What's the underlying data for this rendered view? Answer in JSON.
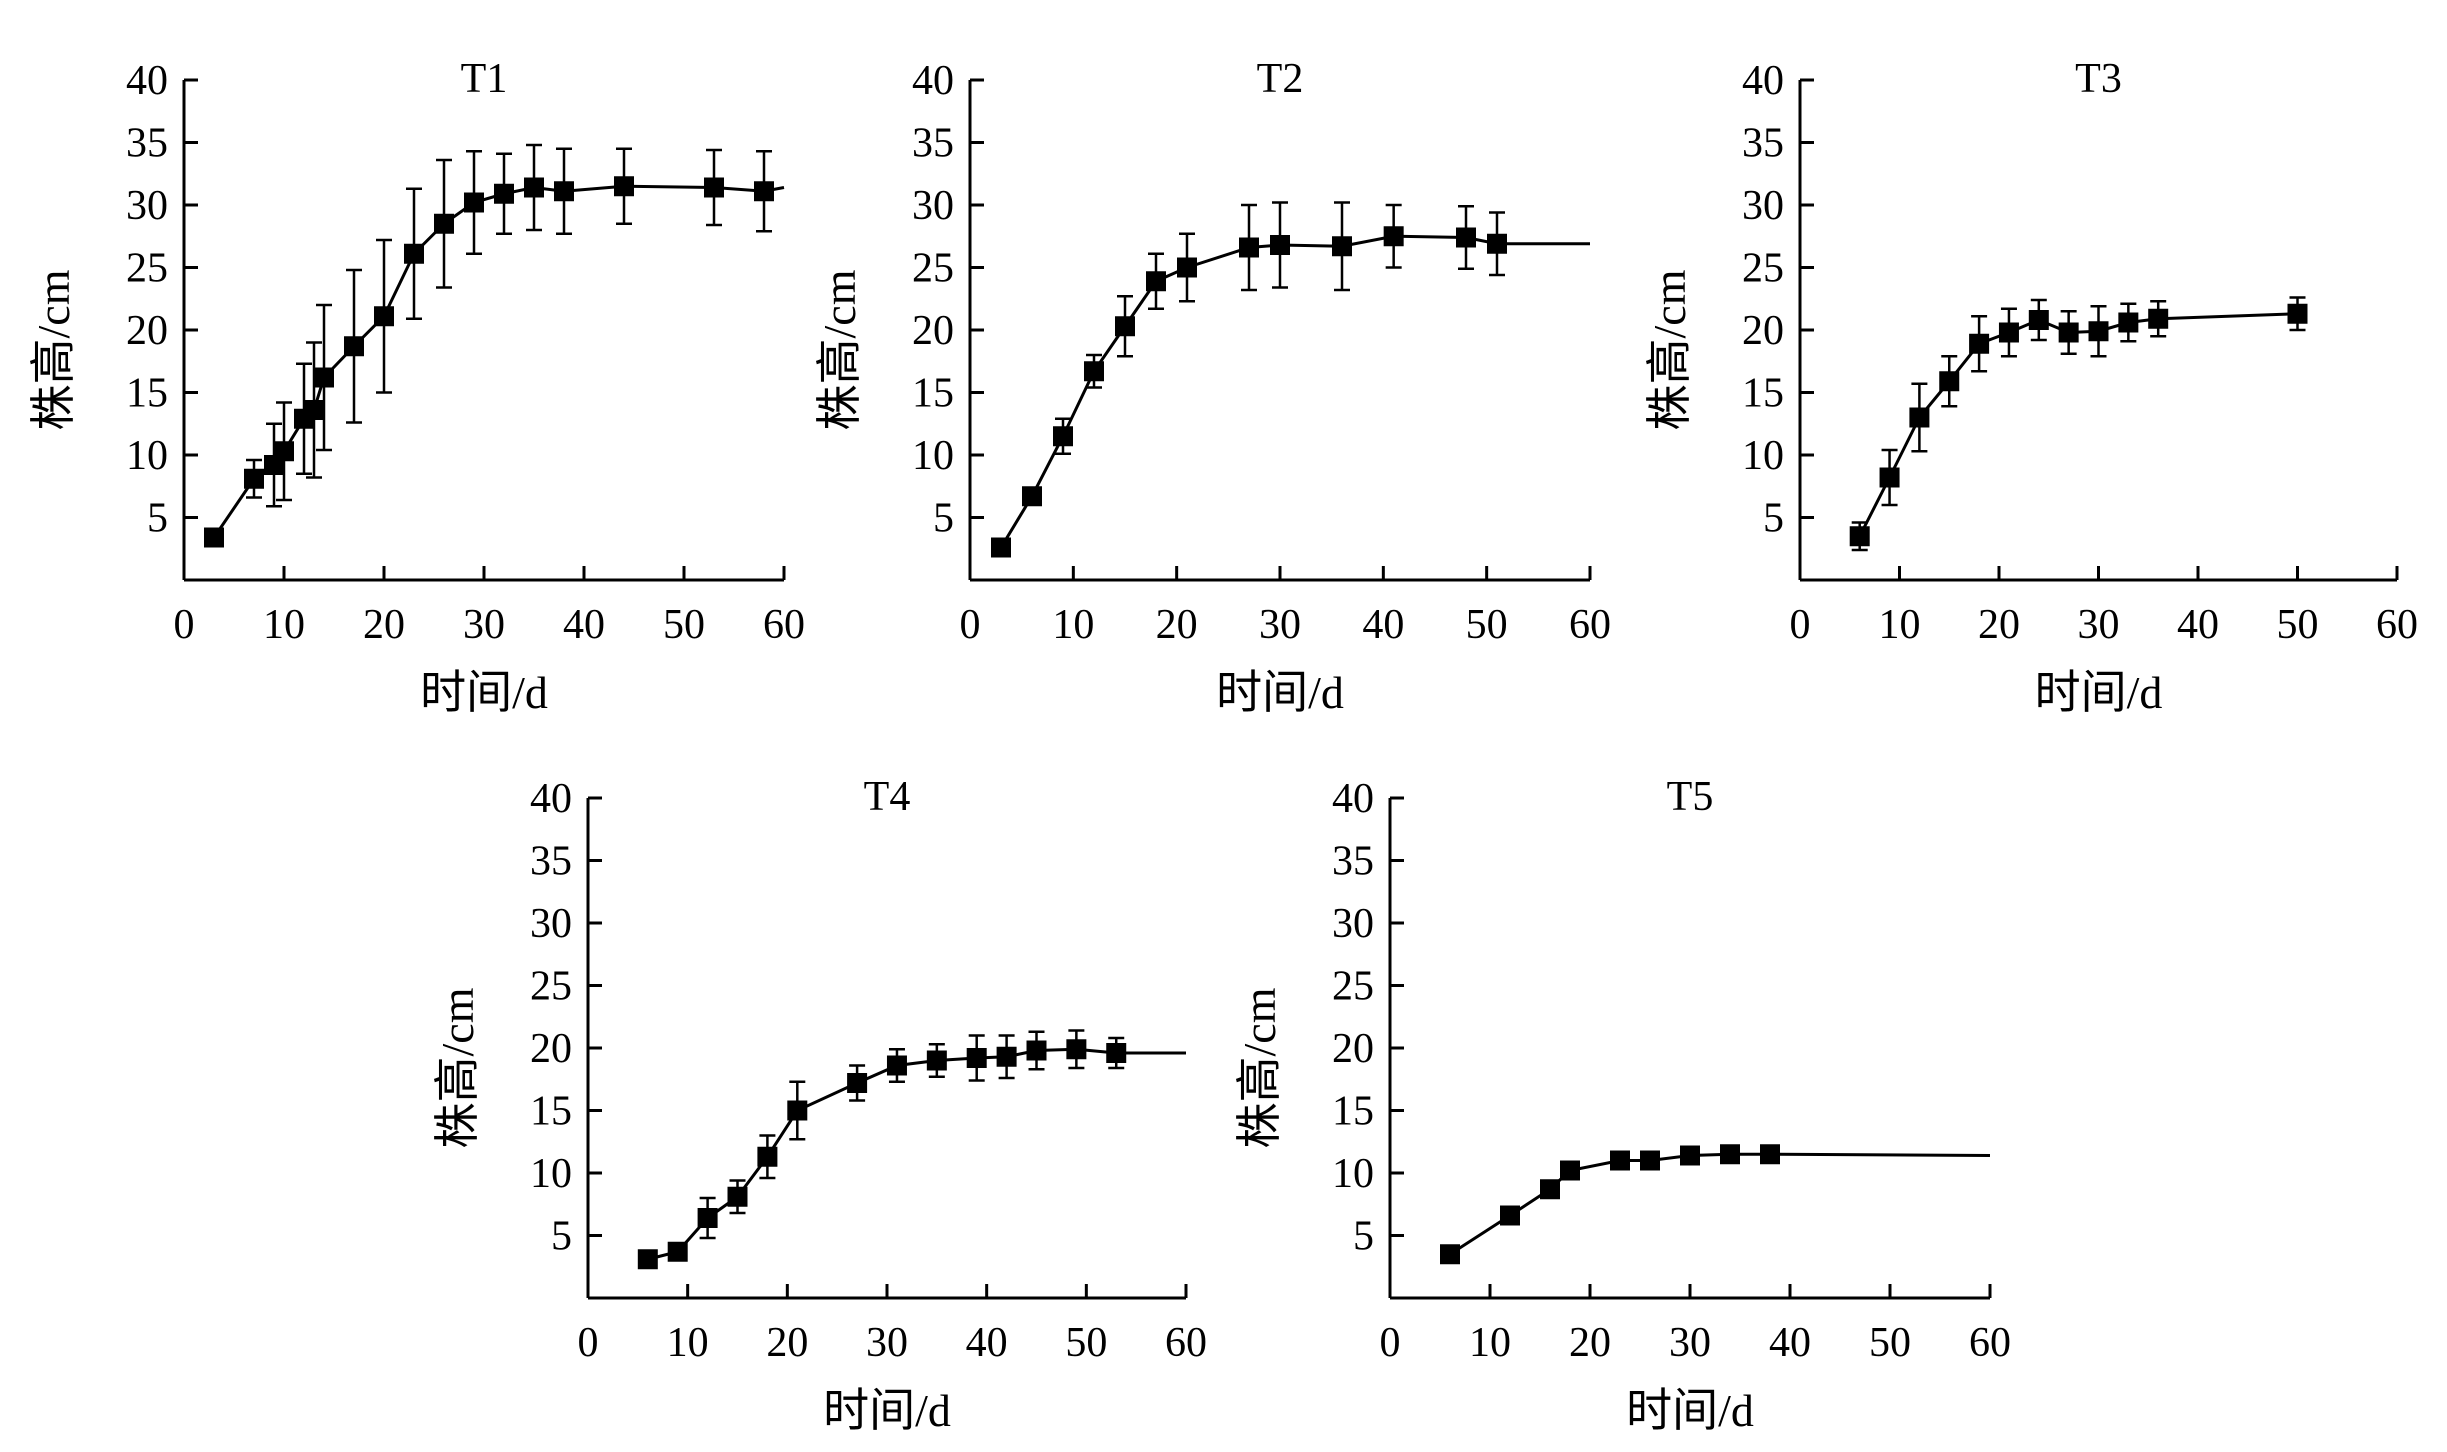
{
  "colors": {
    "line": "#000000",
    "marker": "#000000",
    "background": "#ffffff"
  },
  "chart_data": [
    {
      "type": "line",
      "title": "T1",
      "xlabel": "时间/d",
      "ylabel": "株高/cm",
      "xlim": [
        0,
        60
      ],
      "ylim": [
        0,
        40
      ],
      "xticks": [
        "0",
        "10",
        "20",
        "30",
        "40",
        "50",
        "60"
      ],
      "yticks": [
        "5",
        "10",
        "15",
        "20",
        "25",
        "30",
        "35",
        "40"
      ],
      "grid": false,
      "series": [
        {
          "x": [
            3,
            7,
            9,
            10,
            12,
            13,
            14,
            17,
            20,
            23,
            26,
            29,
            32,
            35,
            38,
            44,
            53,
            58
          ],
          "y": [
            3.4,
            8.1,
            9.2,
            10.3,
            12.9,
            13.6,
            16.2,
            18.7,
            21.1,
            26.1,
            28.5,
            30.2,
            30.9,
            31.4,
            31.1,
            31.5,
            31.4,
            31.1
          ],
          "err": [
            0,
            1.5,
            3.3,
            3.9,
            4.4,
            5.4,
            5.8,
            6.1,
            6.1,
            5.2,
            5.1,
            4.1,
            3.2,
            3.4,
            3.4,
            3.0,
            3.0,
            3.2
          ]
        }
      ],
      "fit_end": [
        60,
        31.4
      ]
    },
    {
      "type": "line",
      "title": "T2",
      "xlabel": "时间/d",
      "ylabel": "株高/cm",
      "xlim": [
        0,
        60
      ],
      "ylim": [
        0,
        40
      ],
      "xticks": [
        "0",
        "10",
        "20",
        "30",
        "40",
        "50",
        "60"
      ],
      "yticks": [
        "5",
        "10",
        "15",
        "20",
        "25",
        "30",
        "35",
        "40"
      ],
      "grid": false,
      "series": [
        {
          "x": [
            3,
            6,
            9,
            12,
            15,
            18,
            21,
            27,
            30,
            36,
            41,
            48,
            51
          ],
          "y": [
            2.6,
            6.7,
            11.5,
            16.7,
            20.3,
            23.9,
            25.0,
            26.6,
            26.8,
            26.7,
            27.5,
            27.4,
            26.9
          ],
          "err": [
            0,
            0.5,
            1.4,
            1.3,
            2.4,
            2.2,
            2.7,
            3.4,
            3.4,
            3.5,
            2.5,
            2.5,
            2.5
          ]
        }
      ],
      "fit_end": [
        60,
        26.9
      ]
    },
    {
      "type": "line",
      "title": "T3",
      "xlabel": "时间/d",
      "ylabel": "株高/cm",
      "xlim": [
        0,
        60
      ],
      "ylim": [
        0,
        40
      ],
      "xticks": [
        "0",
        "10",
        "20",
        "30",
        "40",
        "50",
        "60"
      ],
      "yticks": [
        "5",
        "10",
        "15",
        "20",
        "25",
        "30",
        "35",
        "40"
      ],
      "grid": false,
      "series": [
        {
          "x": [
            6,
            9,
            12,
            15,
            18,
            21,
            24,
            27,
            30,
            33,
            36,
            50
          ],
          "y": [
            3.5,
            8.2,
            13.0,
            15.9,
            18.9,
            19.8,
            20.8,
            19.8,
            19.9,
            20.6,
            20.9,
            21.3
          ],
          "err": [
            1.1,
            2.2,
            2.7,
            2.0,
            2.2,
            1.9,
            1.6,
            1.7,
            2.0,
            1.5,
            1.4,
            1.3
          ]
        }
      ],
      "fit_end": [
        50,
        21.3
      ]
    },
    {
      "type": "line",
      "title": "T4",
      "xlabel": "时间/d",
      "ylabel": "株高/cm",
      "xlim": [
        0,
        60
      ],
      "ylim": [
        0,
        40
      ],
      "xticks": [
        "0",
        "10",
        "20",
        "30",
        "40",
        "50",
        "60"
      ],
      "yticks": [
        "5",
        "10",
        "15",
        "20",
        "25",
        "30",
        "35",
        "40"
      ],
      "grid": false,
      "series": [
        {
          "x": [
            6,
            9,
            12,
            15,
            18,
            21,
            27,
            31,
            35,
            39,
            42,
            45,
            49,
            53
          ],
          "y": [
            3.1,
            3.7,
            6.4,
            8.1,
            11.3,
            15.0,
            17.2,
            18.6,
            19.0,
            19.2,
            19.3,
            19.8,
            19.9,
            19.6
          ],
          "err": [
            0,
            0.6,
            1.6,
            1.3,
            1.7,
            2.3,
            1.4,
            1.3,
            1.3,
            1.8,
            1.7,
            1.5,
            1.5,
            1.2
          ]
        }
      ],
      "fit_end": [
        60,
        19.6
      ]
    },
    {
      "type": "line",
      "title": "T5",
      "xlabel": "时间/d",
      "ylabel": "株高/cm",
      "xlim": [
        0,
        60
      ],
      "ylim": [
        0,
        40
      ],
      "xticks": [
        "0",
        "10",
        "20",
        "30",
        "40",
        "50",
        "60"
      ],
      "yticks": [
        "5",
        "10",
        "15",
        "20",
        "25",
        "30",
        "35",
        "40"
      ],
      "grid": false,
      "series": [
        {
          "x": [
            6,
            12,
            16,
            18,
            23,
            26,
            30,
            34,
            38
          ],
          "y": [
            3.5,
            6.6,
            8.7,
            10.2,
            11.0,
            11.0,
            11.4,
            11.5,
            11.5
          ],
          "err": [
            0,
            0,
            0,
            0,
            0,
            0,
            0,
            0,
            0
          ]
        }
      ],
      "fit_end": [
        60,
        11.4
      ]
    }
  ]
}
